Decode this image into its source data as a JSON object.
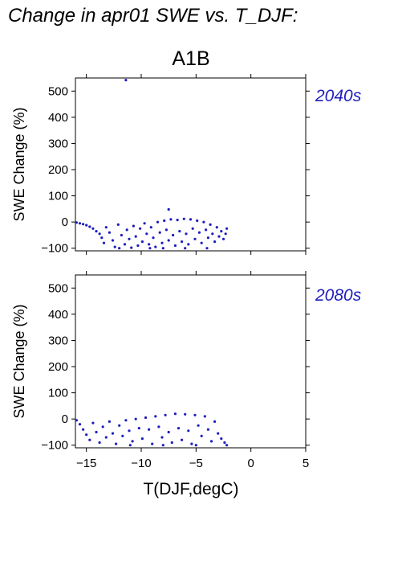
{
  "title": "Change in apr01 SWE vs. T_DJF:",
  "scenario": "A1B",
  "colors": {
    "points": "#1e1ebe",
    "period_label": "#1e1ebe",
    "frame": "#000000"
  },
  "chart_data": [
    {
      "type": "scatter",
      "panel_label": "2040s",
      "xlabel": "",
      "ylabel": "SWE Change (%)",
      "xlim": [
        -16,
        5
      ],
      "ylim": [
        -110,
        550
      ],
      "xticks": [
        -15,
        -10,
        -5,
        0,
        5
      ],
      "yticks": [
        -100,
        0,
        100,
        200,
        300,
        400,
        500
      ],
      "points": [
        [
          -15.9,
          -2
        ],
        [
          -15.6,
          -5
        ],
        [
          -15.3,
          -8
        ],
        [
          -15.0,
          -12
        ],
        [
          -14.7,
          -18
        ],
        [
          -14.4,
          -25
        ],
        [
          -14.1,
          -35
        ],
        [
          -13.8,
          -45
        ],
        [
          -13.6,
          -60
        ],
        [
          -13.4,
          -80
        ],
        [
          -13.2,
          -20
        ],
        [
          -12.9,
          -40
        ],
        [
          -12.6,
          -70
        ],
        [
          -12.4,
          -95
        ],
        [
          -12.1,
          -10
        ],
        [
          -11.8,
          -50
        ],
        [
          -11.5,
          -85
        ],
        [
          -11.3,
          -30
        ],
        [
          -11.1,
          -65
        ],
        [
          -10.9,
          -98
        ],
        [
          -10.7,
          -15
        ],
        [
          -10.5,
          -55
        ],
        [
          -10.3,
          -90
        ],
        [
          -10.1,
          -25
        ],
        [
          -9.9,
          -75
        ],
        [
          -9.7,
          -5
        ],
        [
          -9.5,
          -45
        ],
        [
          -9.3,
          -85
        ],
        [
          -9.1,
          -20
        ],
        [
          -8.9,
          -60
        ],
        [
          -8.7,
          -95
        ],
        [
          -8.5,
          0
        ],
        [
          -8.3,
          -40
        ],
        [
          -8.1,
          -80
        ],
        [
          -7.9,
          5
        ],
        [
          -7.7,
          -30
        ],
        [
          -7.5,
          -70
        ],
        [
          -7.3,
          10
        ],
        [
          -7.1,
          -50
        ],
        [
          -6.9,
          -90
        ],
        [
          -6.7,
          8
        ],
        [
          -6.5,
          -35
        ],
        [
          -6.3,
          -75
        ],
        [
          -6.1,
          12
        ],
        [
          -5.9,
          -45
        ],
        [
          -5.7,
          -85
        ],
        [
          -5.5,
          10
        ],
        [
          -5.3,
          -25
        ],
        [
          -5.1,
          -65
        ],
        [
          -4.9,
          5
        ],
        [
          -4.7,
          -40
        ],
        [
          -4.5,
          -80
        ],
        [
          -4.3,
          0
        ],
        [
          -4.1,
          -30
        ],
        [
          -3.9,
          -60
        ],
        [
          -3.7,
          -10
        ],
        [
          -3.5,
          -45
        ],
        [
          -3.3,
          -75
        ],
        [
          -3.1,
          -20
        ],
        [
          -2.9,
          -55
        ],
        [
          -2.7,
          -35
        ],
        [
          -2.5,
          -65
        ],
        [
          -2.3,
          -45
        ],
        [
          -2.2,
          -25
        ],
        [
          -9.2,
          -100
        ],
        [
          -8.0,
          -100
        ],
        [
          -6.0,
          -100
        ],
        [
          -4.0,
          -100
        ],
        [
          -12.0,
          -100
        ],
        [
          -7.5,
          48
        ],
        [
          -11.4,
          542
        ]
      ]
    },
    {
      "type": "scatter",
      "panel_label": "2080s",
      "xlabel": "T(DJF,degC)",
      "ylabel": "SWE Change (%)",
      "xlim": [
        -16,
        5
      ],
      "ylim": [
        -110,
        550
      ],
      "xticks": [
        -15,
        -10,
        -5,
        0,
        5
      ],
      "yticks": [
        -100,
        0,
        100,
        200,
        300,
        400,
        500
      ],
      "points": [
        [
          -15.9,
          -5
        ],
        [
          -15.6,
          -20
        ],
        [
          -15.3,
          -40
        ],
        [
          -15.0,
          -60
        ],
        [
          -14.7,
          -80
        ],
        [
          -14.4,
          -15
        ],
        [
          -14.1,
          -50
        ],
        [
          -13.8,
          -90
        ],
        [
          -13.5,
          -30
        ],
        [
          -13.2,
          -70
        ],
        [
          -12.9,
          -10
        ],
        [
          -12.6,
          -55
        ],
        [
          -12.3,
          -95
        ],
        [
          -12.0,
          -25
        ],
        [
          -11.7,
          -65
        ],
        [
          -11.4,
          -5
        ],
        [
          -11.1,
          -45
        ],
        [
          -10.8,
          -85
        ],
        [
          -10.5,
          0
        ],
        [
          -10.2,
          -35
        ],
        [
          -9.9,
          -75
        ],
        [
          -9.6,
          5
        ],
        [
          -9.3,
          -40
        ],
        [
          -9.0,
          -95
        ],
        [
          -8.7,
          10
        ],
        [
          -8.4,
          -30
        ],
        [
          -8.1,
          -70
        ],
        [
          -7.8,
          15
        ],
        [
          -7.5,
          -50
        ],
        [
          -7.2,
          -90
        ],
        [
          -6.9,
          20
        ],
        [
          -6.6,
          -35
        ],
        [
          -6.3,
          -80
        ],
        [
          -6.0,
          18
        ],
        [
          -5.7,
          -45
        ],
        [
          -5.4,
          -95
        ],
        [
          -5.1,
          15
        ],
        [
          -4.8,
          -25
        ],
        [
          -4.5,
          -65
        ],
        [
          -4.2,
          10
        ],
        [
          -3.9,
          -40
        ],
        [
          -3.6,
          -85
        ],
        [
          -3.3,
          -10
        ],
        [
          -3.0,
          -55
        ],
        [
          -2.7,
          -75
        ],
        [
          -2.4,
          -90
        ],
        [
          -2.2,
          -100
        ],
        [
          -11.0,
          -100
        ],
        [
          -8.0,
          -100
        ],
        [
          -5.0,
          -100
        ]
      ]
    }
  ]
}
